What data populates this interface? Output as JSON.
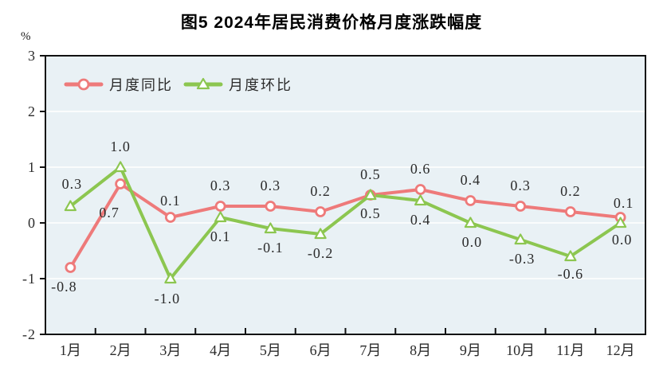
{
  "title": "图5  2024年居民消费价格月度涨跌幅度",
  "unit_label": "%",
  "legend": {
    "items": [
      {
        "label": "月度同比",
        "marker": "circle-icon"
      },
      {
        "label": "月度环比",
        "marker": "triangle-icon"
      }
    ]
  },
  "chart_data": {
    "type": "line",
    "title": "图5  2024年居民消费价格月度涨跌幅度",
    "xlabel": "",
    "ylabel": "%",
    "ylim": [
      -2,
      3
    ],
    "yticks": [
      3,
      2,
      1,
      0,
      -1,
      -2
    ],
    "grid": true,
    "legend_position": "top-left-inside",
    "categories": [
      "1月",
      "2月",
      "3月",
      "4月",
      "5月",
      "6月",
      "7月",
      "8月",
      "9月",
      "10月",
      "11月",
      "12月"
    ],
    "series": [
      {
        "name": "月度同比",
        "marker": "circle",
        "color": "#ee7a7a",
        "values": [
          -0.8,
          0.7,
          0.1,
          0.3,
          0.3,
          0.2,
          0.5,
          0.6,
          0.4,
          0.3,
          0.2,
          0.1
        ],
        "labels": [
          "-0.8",
          "0.7",
          "0.1",
          "0.3",
          "0.3",
          "0.2",
          "0.5",
          "0.6",
          "0.4",
          "0.3",
          "0.2",
          "0.1"
        ],
        "label_dx": [
          -8,
          -14,
          0,
          0,
          0,
          0,
          0,
          0,
          0,
          0,
          0,
          4
        ],
        "label_dy": [
          30,
          42,
          -15,
          -20,
          -20,
          -20,
          -20,
          -20,
          -20,
          -20,
          -20,
          -12
        ]
      },
      {
        "name": "月度环比",
        "marker": "triangle",
        "color": "#8cc650",
        "values": [
          0.3,
          1.0,
          -1.0,
          0.1,
          -0.1,
          -0.2,
          0.5,
          0.4,
          0.0,
          -0.3,
          -0.6,
          0.0
        ],
        "labels": [
          "0.3",
          "1.0",
          "-1.0",
          "0.1",
          "-0.1",
          "-0.2",
          "0.5",
          "0.4",
          "0.0",
          "-0.3",
          "-0.6",
          "0.0"
        ],
        "label_dx": [
          2,
          0,
          -4,
          0,
          0,
          0,
          0,
          0,
          2,
          2,
          0,
          2
        ],
        "label_dy": [
          -22,
          -20,
          31,
          30,
          30,
          30,
          29,
          30,
          30,
          30,
          28,
          27
        ]
      }
    ],
    "colors": {
      "plot_bg": "#e9f1f5",
      "grid": "#ffffff",
      "axis": "#111111",
      "text": "#2b2b2b",
      "marker_fill": "#ffffff"
    }
  }
}
